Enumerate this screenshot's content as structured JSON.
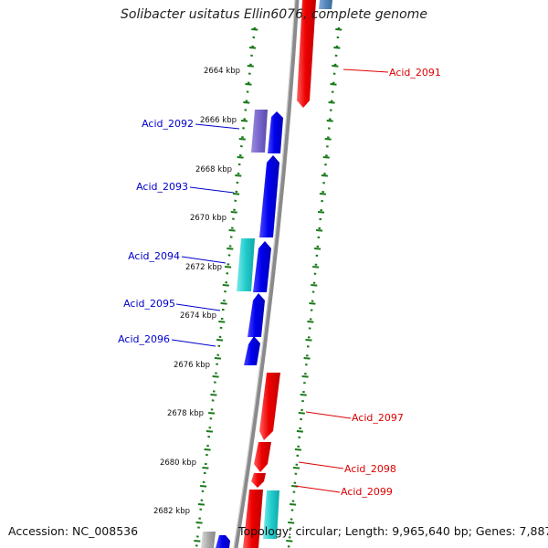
{
  "title": "Solibacter usitatus Ellin6076, complete genome",
  "footer": {
    "accession": "Accession: NC_008536",
    "summary": "Topology: circular; Length: 9,965,640 bp; Genes: 7,887"
  },
  "colors": {
    "backbone": "#888888",
    "ruler_ticks": "#1a7a1a",
    "forward_label": "#0000cc",
    "reverse_label": "#dd0000",
    "blue_gene": "#0000ee",
    "purple_gene": "#7766cc",
    "cyan_gene": "#22cccc",
    "red_gene": "#ee0000",
    "steel_gene": "#5588bb",
    "gray_gene": "#aaaaaa"
  },
  "ruler": {
    "units": "kbp",
    "labels": [
      "2664 kbp",
      "2666 kbp",
      "2668 kbp",
      "2670 kbp",
      "2672 kbp",
      "2674 kbp",
      "2676 kbp",
      "2678 kbp",
      "2680 kbp",
      "2682 kbp"
    ]
  },
  "genes": [
    {
      "name": "Acid_2091",
      "strand": "reverse",
      "color": "red"
    },
    {
      "name": "Acid_2092",
      "strand": "forward",
      "color": "purple"
    },
    {
      "name": "Acid_2093",
      "strand": "forward",
      "color": "blue"
    },
    {
      "name": "Acid_2094",
      "strand": "forward",
      "color": "cyan"
    },
    {
      "name": "Acid_2095",
      "strand": "forward",
      "color": "blue"
    },
    {
      "name": "Acid_2096",
      "strand": "forward",
      "color": "blue"
    },
    {
      "name": "Acid_2097",
      "strand": "reverse",
      "color": "red"
    },
    {
      "name": "Acid_2098",
      "strand": "reverse",
      "color": "red"
    },
    {
      "name": "Acid_2099",
      "strand": "reverse",
      "color": "red"
    }
  ]
}
